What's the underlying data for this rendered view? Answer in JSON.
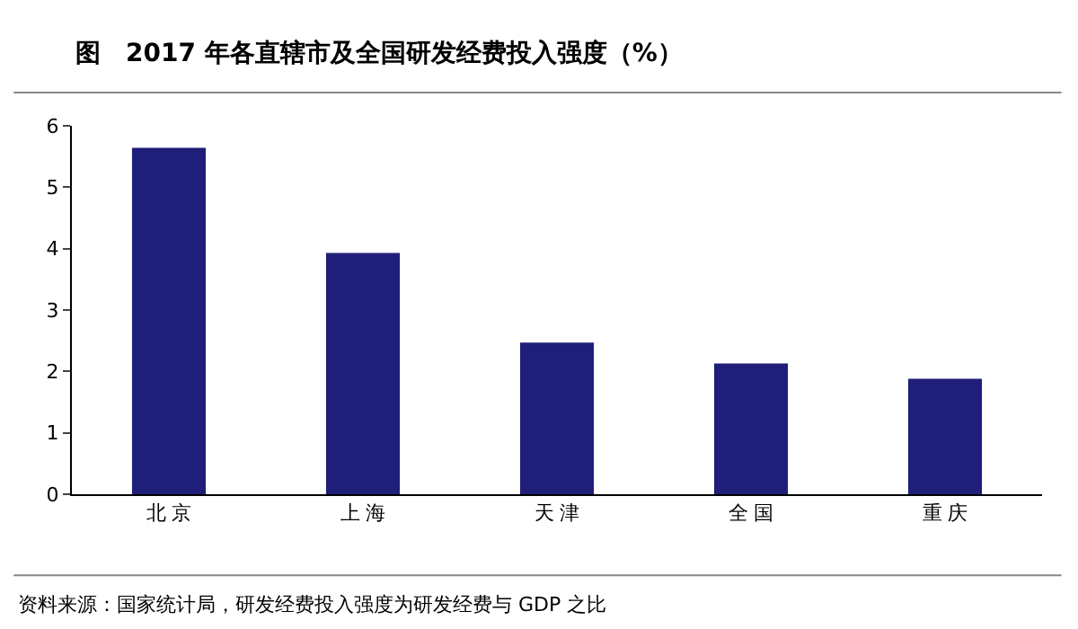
{
  "chart_data": {
    "type": "bar",
    "title": "图　2017 年各直辖市及全国研发经费投入强度（%）",
    "categories": [
      "北 京",
      "上 海",
      "天 津",
      "全 国",
      "重 庆"
    ],
    "values": [
      5.64,
      3.93,
      2.47,
      2.13,
      1.88
    ],
    "color": "#1f1f7a",
    "ylim": [
      0,
      6
    ],
    "yticks": [
      0,
      1,
      2,
      3,
      4,
      5,
      6
    ],
    "grid": false,
    "annotations": [
      "资料来源：国家统计局，研发经费投入强度为研发经费与 GDP 之比"
    ]
  }
}
